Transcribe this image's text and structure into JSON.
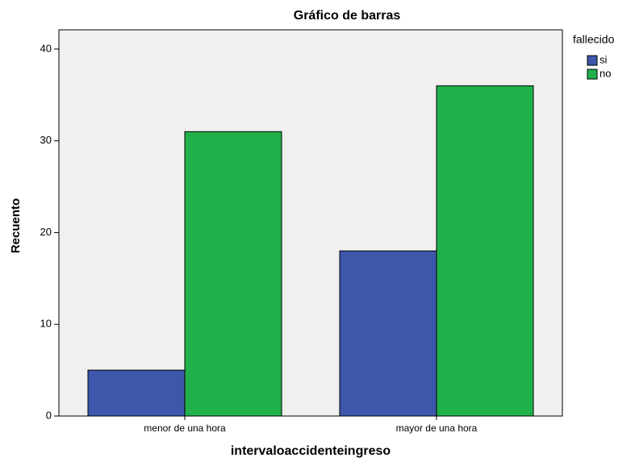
{
  "chart_data": {
    "type": "bar",
    "title": "Gráfico de barras",
    "xlabel": "intervaloaccidenteingreso",
    "ylabel": "Recuento",
    "categories": [
      "menor de una hora",
      "mayor de una hora"
    ],
    "legend_title": "fallecido",
    "series": [
      {
        "name": "si",
        "color": "#3d57ab",
        "values": [
          5,
          18
        ]
      },
      {
        "name": "no",
        "color": "#21b14b",
        "values": [
          31,
          36
        ]
      }
    ],
    "ylim": [
      0,
      42.1
    ],
    "yticks": [
      0,
      10,
      20,
      30,
      40
    ],
    "grid": false
  }
}
